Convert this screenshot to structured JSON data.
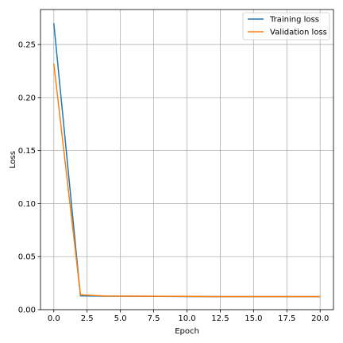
{
  "chart_data": {
    "type": "line",
    "title": "",
    "xlabel": "Epoch",
    "ylabel": "Loss",
    "xlim": [
      -1,
      21
    ],
    "ylim": [
      0,
      0.283
    ],
    "xticks": [
      0.0,
      2.5,
      5.0,
      7.5,
      10.0,
      12.5,
      15.0,
      17.5,
      20.0
    ],
    "xtick_labels": [
      "0.0",
      "2.5",
      "5.0",
      "7.5",
      "10.0",
      "12.5",
      "15.0",
      "17.5",
      "20.0"
    ],
    "yticks": [
      0.0,
      0.05,
      0.1,
      0.15,
      0.2,
      0.25
    ],
    "ytick_labels": [
      "0.00",
      "0.05",
      "0.10",
      "0.15",
      "0.20",
      "0.25"
    ],
    "grid": true,
    "legend": "top-right",
    "series": [
      {
        "name": "Training loss",
        "color": "#1f77b4",
        "x": [
          0,
          2,
          4,
          6,
          8,
          10,
          12,
          14,
          16,
          18,
          20
        ],
        "y": [
          0.27,
          0.013,
          0.0127,
          0.0126,
          0.0125,
          0.0124,
          0.0123,
          0.0123,
          0.0123,
          0.0123,
          0.0123
        ]
      },
      {
        "name": "Validation loss",
        "color": "#ff7f0e",
        "x": [
          0,
          2,
          4,
          6,
          8,
          10,
          12,
          14,
          16,
          18,
          20
        ],
        "y": [
          0.232,
          0.014,
          0.0128,
          0.0127,
          0.0126,
          0.0125,
          0.0124,
          0.0124,
          0.0124,
          0.0124,
          0.0124
        ]
      }
    ]
  }
}
